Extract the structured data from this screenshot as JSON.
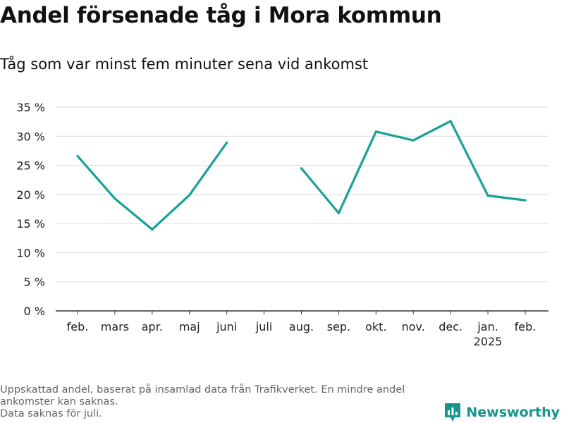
{
  "header": {
    "title": "Andel försenade tåg i Mora kommun",
    "subtitle": "Tåg som var minst fem minuter sena vid ankomst"
  },
  "footer": {
    "note_line1": "Uppskattad andel, baserat på insamlad data från Trafikverket. En mindre andel",
    "note_line2": "ankomster kan saknas.",
    "note_line3": "Data saknas för juli."
  },
  "brand": {
    "name": "Newsworthy",
    "icon": "newsworthy-logo-icon"
  },
  "colors": {
    "line": "#16a199",
    "grid": "#dddddd",
    "axis": "#333333",
    "text": "#222222",
    "brand": "#15958c"
  },
  "chart_data": {
    "type": "line",
    "categories": [
      "feb.",
      "mars",
      "apr.",
      "maj",
      "juni",
      "juli",
      "aug.",
      "sep.",
      "okt.",
      "nov.",
      "dec.",
      "jan.",
      "feb."
    ],
    "category_sublabels": [
      "",
      "",
      "",
      "",
      "",
      "",
      "",
      "",
      "",
      "",
      "",
      "2025",
      ""
    ],
    "series": [
      {
        "values": [
          26.6,
          19.3,
          14.0,
          19.9,
          28.9,
          null,
          24.5,
          16.8,
          30.8,
          29.3,
          32.6,
          19.8,
          19.0
        ]
      }
    ],
    "ylim": [
      0,
      35
    ],
    "yticks": [
      0,
      5,
      10,
      15,
      20,
      25,
      30,
      35
    ],
    "ytick_labels": [
      "0 %",
      "5 %",
      "10 %",
      "15 %",
      "20 %",
      "25 %",
      "30 %",
      "35 %"
    ],
    "grid": true,
    "legend": "none"
  }
}
